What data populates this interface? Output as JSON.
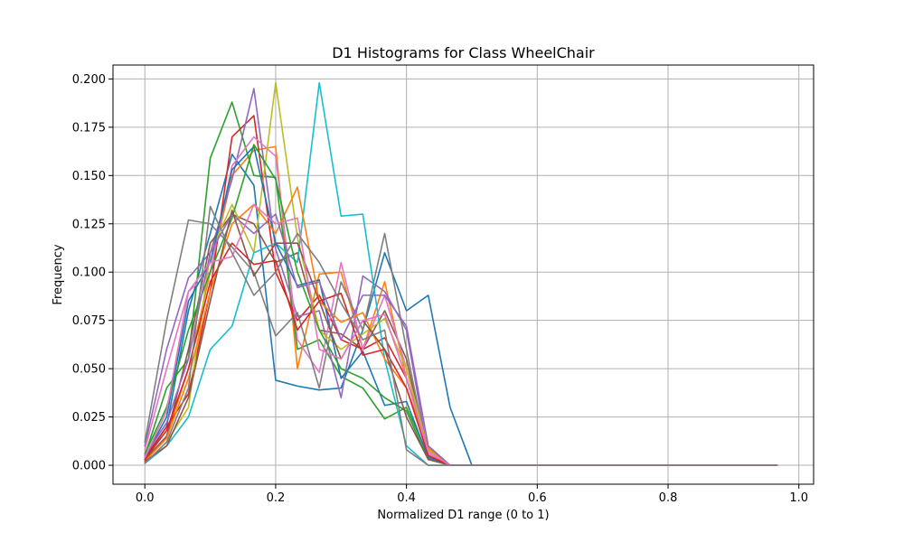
{
  "chart_data": {
    "type": "line",
    "title": "D1 Histograms for Class WheelChair",
    "xlabel": "Normalized D1 range (0 to 1)",
    "ylabel": "Frequency",
    "xlim": [
      -0.0487,
      1.0225
    ],
    "ylim": [
      -0.0098,
      0.2072
    ],
    "xticks": [
      0.0,
      0.2,
      0.4,
      0.6,
      0.8,
      1.0
    ],
    "xtick_labels": [
      "0.0",
      "0.2",
      "0.4",
      "0.6",
      "0.8",
      "1.0"
    ],
    "yticks": [
      0.0,
      0.025,
      0.05,
      0.075,
      0.1,
      0.125,
      0.15,
      0.175,
      0.2
    ],
    "ytick_labels": [
      "0.000",
      "0.025",
      "0.050",
      "0.075",
      "0.100",
      "0.125",
      "0.150",
      "0.175",
      "0.200"
    ],
    "grid": true,
    "legend": "none",
    "colors": [
      "#1f77b4",
      "#ff7f0e",
      "#2ca02c",
      "#d62728",
      "#9467bd",
      "#8c564b",
      "#e377c2",
      "#7f7f7f",
      "#bcbd22",
      "#17becf"
    ],
    "x": [
      0.0,
      0.0333,
      0.0667,
      0.1,
      0.1333,
      0.1667,
      0.2,
      0.2333,
      0.2667,
      0.3,
      0.3333,
      0.3667,
      0.4,
      0.4333,
      0.4667,
      0.5,
      0.5333,
      0.5667,
      0.6,
      0.6333,
      0.6667,
      0.7,
      0.7333,
      0.7667,
      0.8,
      0.8333,
      0.8667,
      0.9,
      0.9333,
      0.9667
    ],
    "series": [
      {
        "values": [
          0.003,
          0.02,
          0.08,
          0.12,
          0.161,
          0.145,
          0.044,
          0.041,
          0.039,
          0.04,
          0.07,
          0.11,
          0.08,
          0.088,
          0.03,
          0.0,
          0.0,
          0.0,
          0.0,
          0.0,
          0.0,
          0.0,
          0.0,
          0.0,
          0.0,
          0.0,
          0.0,
          0.0,
          0.0,
          0.0
        ]
      },
      {
        "values": [
          0.002,
          0.015,
          0.05,
          0.1,
          0.15,
          0.163,
          0.165,
          0.05,
          0.099,
          0.1,
          0.06,
          0.095,
          0.045,
          0.01,
          0.0,
          0.0,
          0.0,
          0.0,
          0.0,
          0.0,
          0.0,
          0.0,
          0.0,
          0.0,
          0.0,
          0.0,
          0.0,
          0.0,
          0.0,
          0.0
        ]
      },
      {
        "values": [
          0.005,
          0.04,
          0.055,
          0.159,
          0.188,
          0.15,
          0.149,
          0.06,
          0.065,
          0.046,
          0.04,
          0.024,
          0.03,
          0.005,
          0.0,
          0.0,
          0.0,
          0.0,
          0.0,
          0.0,
          0.0,
          0.0,
          0.0,
          0.0,
          0.0,
          0.0,
          0.0,
          0.0,
          0.0,
          0.0
        ]
      },
      {
        "values": [
          0.004,
          0.02,
          0.037,
          0.09,
          0.17,
          0.181,
          0.1,
          0.075,
          0.088,
          0.065,
          0.06,
          0.066,
          0.045,
          0.008,
          0.0,
          0.0,
          0.0,
          0.0,
          0.0,
          0.0,
          0.0,
          0.0,
          0.0,
          0.0,
          0.0,
          0.0,
          0.0,
          0.0,
          0.0,
          0.0
        ]
      },
      {
        "values": [
          0.01,
          0.06,
          0.097,
          0.11,
          0.148,
          0.195,
          0.112,
          0.077,
          0.08,
          0.035,
          0.098,
          0.09,
          0.07,
          0.005,
          0.0,
          0.0,
          0.0,
          0.0,
          0.0,
          0.0,
          0.0,
          0.0,
          0.0,
          0.0,
          0.0,
          0.0,
          0.0,
          0.0,
          0.0,
          0.0
        ]
      },
      {
        "values": [
          0.003,
          0.015,
          0.06,
          0.115,
          0.13,
          0.125,
          0.105,
          0.11,
          0.07,
          0.068,
          0.06,
          0.08,
          0.055,
          0.004,
          0.0,
          0.0,
          0.0,
          0.0,
          0.0,
          0.0,
          0.0,
          0.0,
          0.0,
          0.0,
          0.0,
          0.0,
          0.0,
          0.0,
          0.0,
          0.0
        ]
      },
      {
        "values": [
          0.008,
          0.05,
          0.09,
          0.1,
          0.155,
          0.17,
          0.16,
          0.065,
          0.048,
          0.105,
          0.06,
          0.088,
          0.05,
          0.006,
          0.0,
          0.0,
          0.0,
          0.0,
          0.0,
          0.0,
          0.0,
          0.0,
          0.0,
          0.0,
          0.0,
          0.0,
          0.0,
          0.0,
          0.0,
          0.0
        ]
      },
      {
        "values": [
          0.012,
          0.075,
          0.127,
          0.125,
          0.113,
          0.1,
          0.067,
          0.079,
          0.04,
          0.095,
          0.07,
          0.12,
          0.06,
          0.004,
          0.0,
          0.0,
          0.0,
          0.0,
          0.0,
          0.0,
          0.0,
          0.0,
          0.0,
          0.0,
          0.0,
          0.0,
          0.0,
          0.0,
          0.0,
          0.0
        ]
      },
      {
        "values": [
          0.001,
          0.012,
          0.03,
          0.11,
          0.135,
          0.11,
          0.198,
          0.118,
          0.07,
          0.06,
          0.068,
          0.076,
          0.05,
          0.008,
          0.0,
          0.0,
          0.0,
          0.0,
          0.0,
          0.0,
          0.0,
          0.0,
          0.0,
          0.0,
          0.0,
          0.0,
          0.0,
          0.0,
          0.0,
          0.0
        ]
      },
      {
        "values": [
          0.001,
          0.01,
          0.025,
          0.06,
          0.072,
          0.11,
          0.115,
          0.105,
          0.198,
          0.129,
          0.13,
          0.055,
          0.01,
          0.0,
          0.0,
          0.0,
          0.0,
          0.0,
          0.0,
          0.0,
          0.0,
          0.0,
          0.0,
          0.0,
          0.0,
          0.0,
          0.0,
          0.0,
          0.0,
          0.0
        ]
      },
      {
        "values": [
          0.004,
          0.025,
          0.085,
          0.105,
          0.153,
          0.165,
          0.115,
          0.093,
          0.096,
          0.045,
          0.059,
          0.031,
          0.033,
          0.004,
          0.0,
          0.0,
          0.0,
          0.0,
          0.0,
          0.0,
          0.0,
          0.0,
          0.0,
          0.0,
          0.0,
          0.0,
          0.0,
          0.0,
          0.0,
          0.0
        ]
      },
      {
        "values": [
          0.002,
          0.014,
          0.045,
          0.09,
          0.125,
          0.135,
          0.12,
          0.144,
          0.085,
          0.074,
          0.079,
          0.055,
          0.04,
          0.009,
          0.0,
          0.0,
          0.0,
          0.0,
          0.0,
          0.0,
          0.0,
          0.0,
          0.0,
          0.0,
          0.0,
          0.0,
          0.0,
          0.0,
          0.0,
          0.0
        ]
      },
      {
        "values": [
          0.006,
          0.03,
          0.07,
          0.1,
          0.128,
          0.166,
          0.148,
          0.1,
          0.07,
          0.05,
          0.045,
          0.035,
          0.028,
          0.003,
          0.0,
          0.0,
          0.0,
          0.0,
          0.0,
          0.0,
          0.0,
          0.0,
          0.0,
          0.0,
          0.0,
          0.0,
          0.0,
          0.0,
          0.0,
          0.0
        ]
      },
      {
        "values": [
          0.003,
          0.018,
          0.05,
          0.095,
          0.115,
          0.104,
          0.106,
          0.07,
          0.085,
          0.089,
          0.057,
          0.06,
          0.04,
          0.005,
          0.0,
          0.0,
          0.0,
          0.0,
          0.0,
          0.0,
          0.0,
          0.0,
          0.0,
          0.0,
          0.0,
          0.0,
          0.0,
          0.0,
          0.0,
          0.0
        ]
      },
      {
        "values": [
          0.005,
          0.022,
          0.055,
          0.11,
          0.13,
          0.12,
          0.13,
          0.092,
          0.095,
          0.065,
          0.088,
          0.088,
          0.072,
          0.01,
          0.0,
          0.0,
          0.0,
          0.0,
          0.0,
          0.0,
          0.0,
          0.0,
          0.0,
          0.0,
          0.0,
          0.0,
          0.0,
          0.0,
          0.0,
          0.0
        ]
      },
      {
        "values": [
          0.002,
          0.01,
          0.035,
          0.085,
          0.132,
          0.098,
          0.115,
          0.115,
          0.085,
          0.055,
          0.075,
          0.06,
          0.025,
          0.003,
          0.0,
          0.0,
          0.0,
          0.0,
          0.0,
          0.0,
          0.0,
          0.0,
          0.0,
          0.0,
          0.0,
          0.0,
          0.0,
          0.0,
          0.0,
          0.0
        ]
      },
      {
        "values": [
          0.004,
          0.028,
          0.09,
          0.105,
          0.108,
          0.135,
          0.125,
          0.128,
          0.06,
          0.055,
          0.075,
          0.078,
          0.045,
          0.007,
          0.0,
          0.0,
          0.0,
          0.0,
          0.0,
          0.0,
          0.0,
          0.0,
          0.0,
          0.0,
          0.0,
          0.0,
          0.0,
          0.0,
          0.0,
          0.0
        ]
      },
      {
        "values": [
          0.001,
          0.012,
          0.04,
          0.134,
          0.11,
          0.088,
          0.1,
          0.12,
          0.105,
          0.084,
          0.065,
          0.07,
          0.008,
          0.0,
          0.0,
          0.0,
          0.0,
          0.0,
          0.0,
          0.0,
          0.0,
          0.0,
          0.0,
          0.0,
          0.0,
          0.0,
          0.0,
          0.0,
          0.0,
          0.0
        ]
      }
    ]
  }
}
